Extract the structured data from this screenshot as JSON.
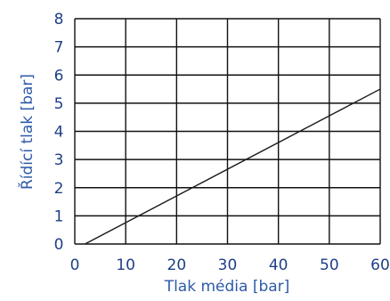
{
  "chart_data": {
    "type": "line",
    "xlabel": "Tlak média [bar]",
    "ylabel": "Řídící tlak [bar]",
    "xlim": [
      0,
      60
    ],
    "ylim": [
      0,
      8
    ],
    "x_ticks": [
      "0",
      "10",
      "20",
      "30",
      "40",
      "50",
      "60"
    ],
    "y_ticks": [
      "0",
      "1",
      "2",
      "3",
      "4",
      "5",
      "6",
      "7",
      "8"
    ],
    "grid": true,
    "series": [
      {
        "x": [
          2,
          60
        ],
        "y": [
          0,
          5.5
        ]
      }
    ],
    "colors": {
      "line": "#1a1a1a",
      "grid": "#111111",
      "text": "#1f3f86"
    }
  }
}
